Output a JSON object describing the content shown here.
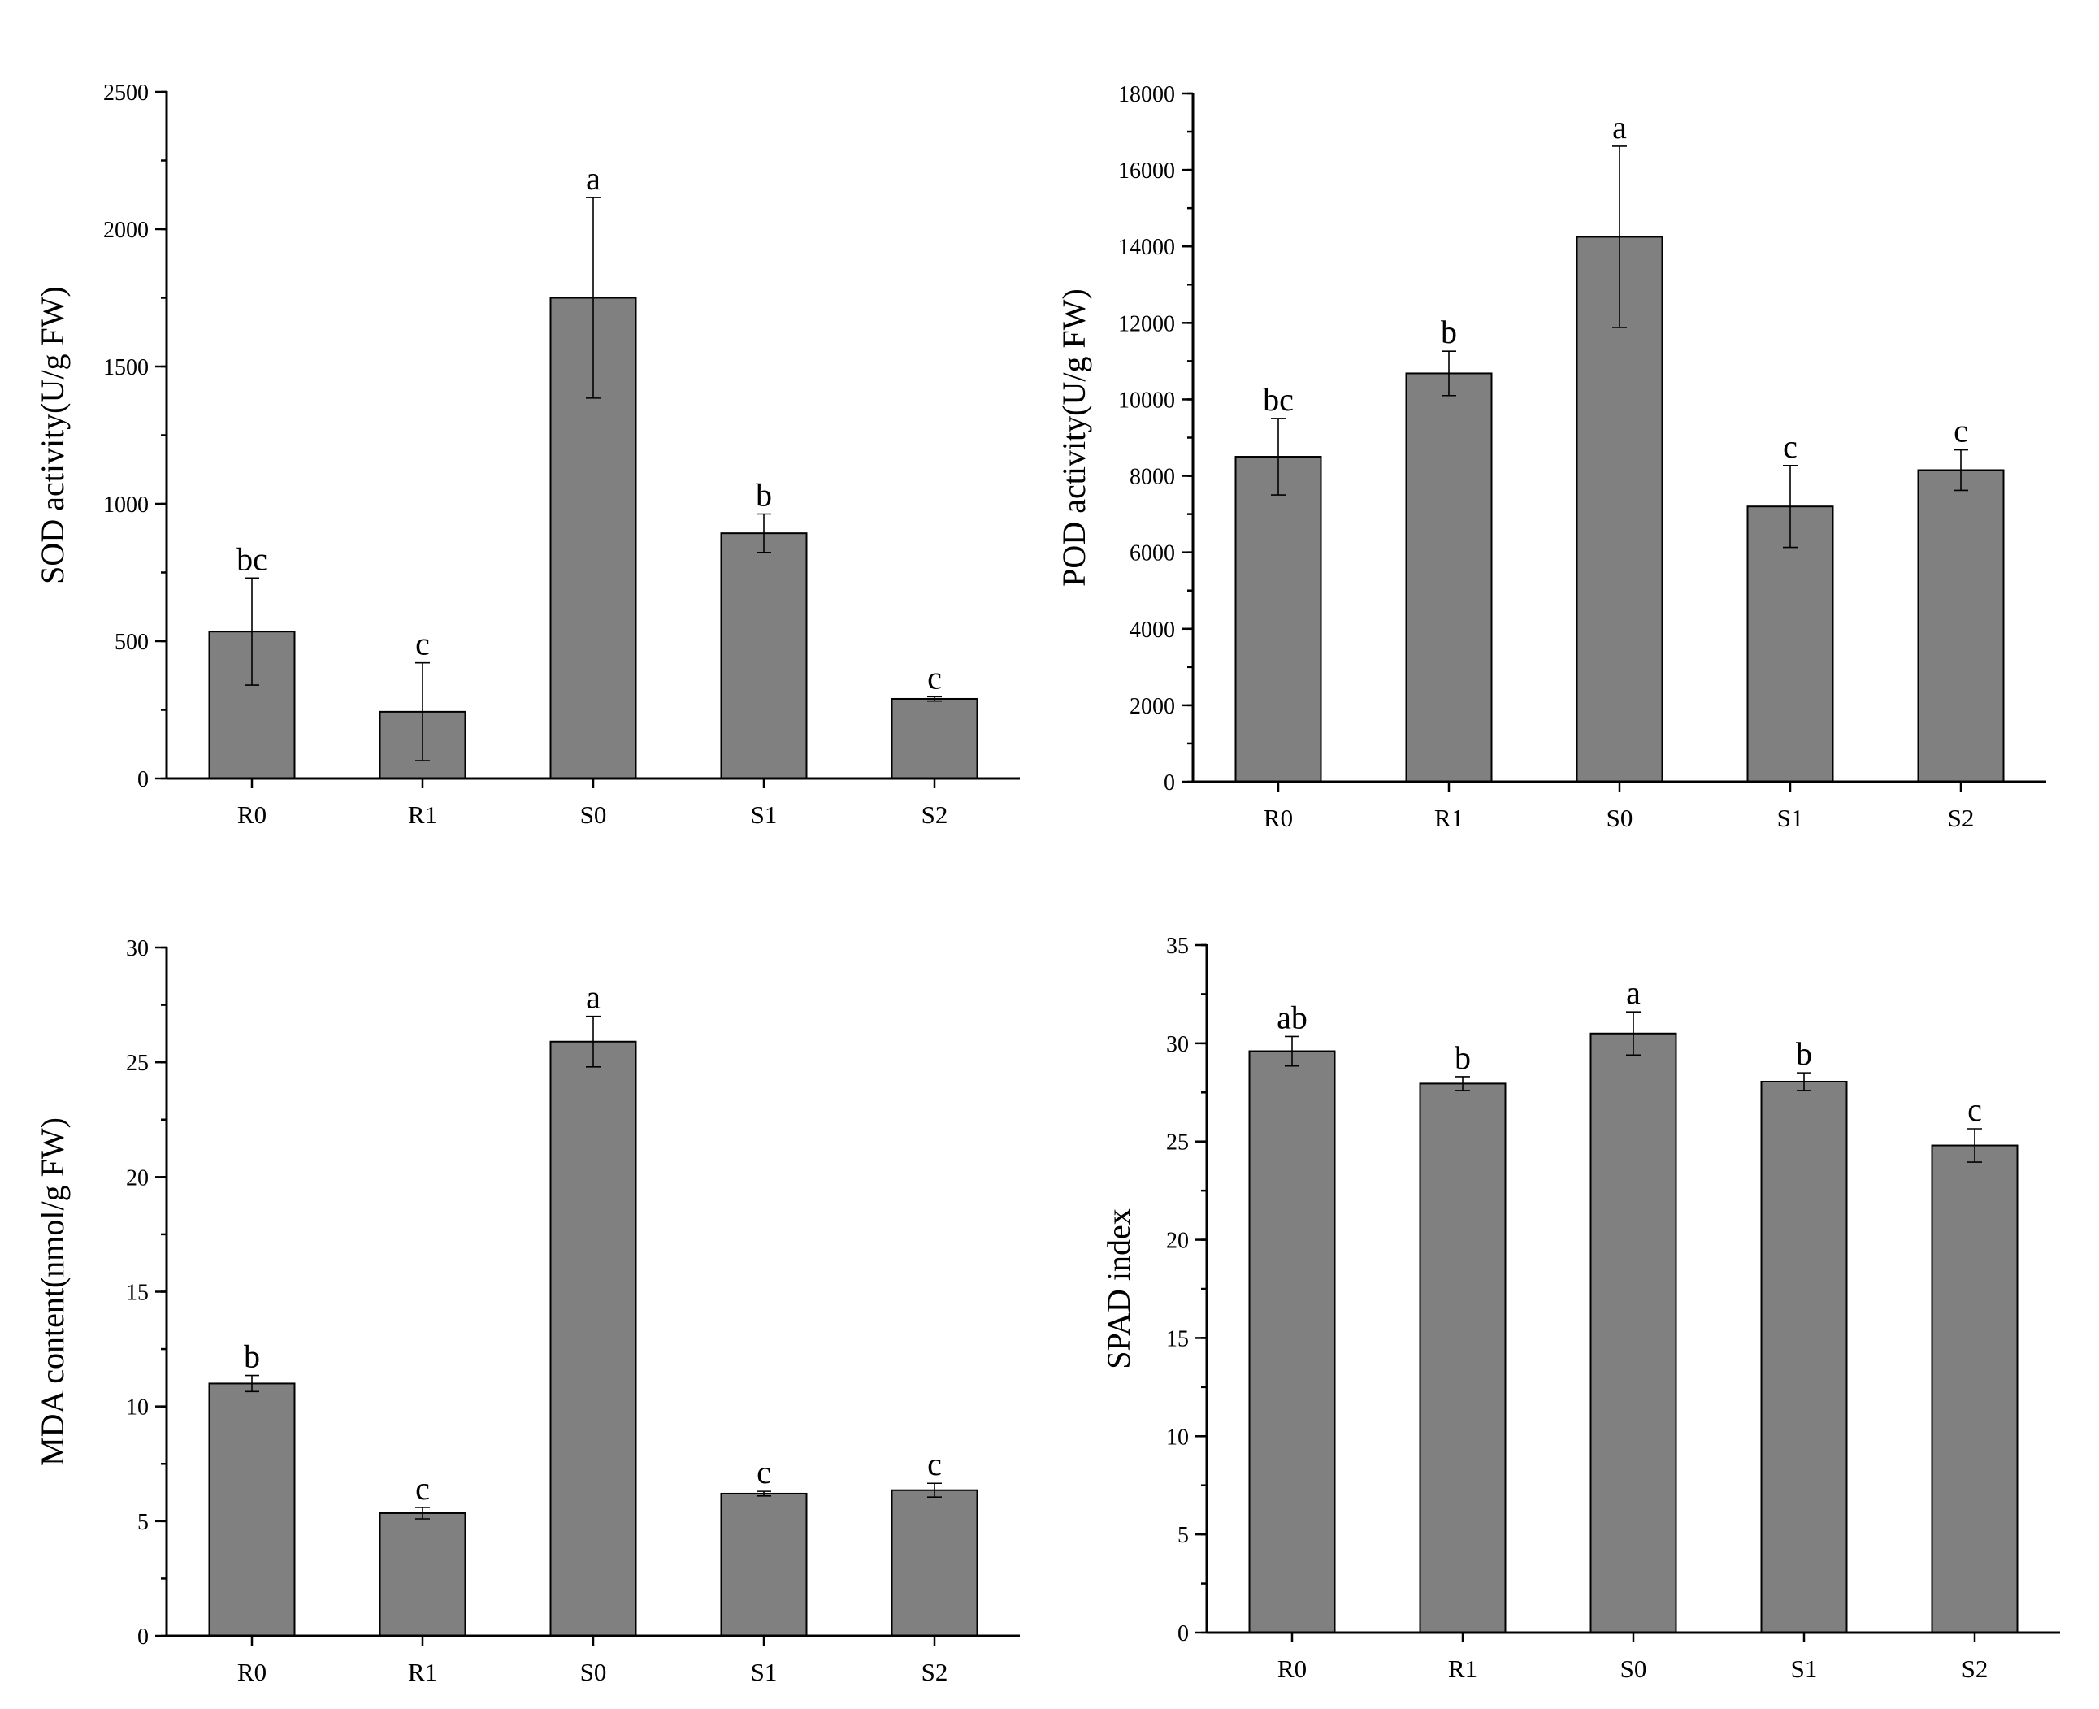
{
  "chart_data": [
    {
      "type": "bar",
      "ylabel": "SOD activity(U/g FW)",
      "categories": [
        "R0",
        "R1",
        "S0",
        "S1",
        "S2"
      ],
      "values": [
        535,
        243,
        1750,
        893,
        290
      ],
      "errors": [
        195,
        178,
        365,
        70,
        8
      ],
      "significance": [
        "bc",
        "c",
        "a",
        "b",
        "c"
      ],
      "ylim": [
        0,
        2500
      ],
      "yticks": [
        0,
        500,
        1000,
        1500,
        2000,
        2500
      ],
      "ytick_labels": [
        "0",
        "500",
        "1000",
        "1500",
        "2000",
        "2500"
      ],
      "minor_step": 250
    },
    {
      "type": "bar",
      "ylabel": "POD activity(U/g FW)",
      "categories": [
        "R0",
        "R1",
        "S0",
        "S1",
        "S2"
      ],
      "values": [
        8500,
        10680,
        14250,
        7200,
        8150
      ],
      "errors": [
        1000,
        580,
        2370,
        1070,
        530
      ],
      "significance": [
        "bc",
        "b",
        "a",
        "c",
        "c"
      ],
      "ylim": [
        0,
        18000
      ],
      "yticks": [
        0,
        2000,
        4000,
        6000,
        8000,
        10000,
        12000,
        14000,
        16000,
        18000
      ],
      "ytick_labels": [
        "0",
        "2000",
        "4000",
        "6000",
        "8000",
        "10000",
        "12000",
        "14000",
        "16000",
        "18000"
      ],
      "minor_step": 1000
    },
    {
      "type": "bar",
      "ylabel": "MDA content(nmol/g FW)",
      "categories": [
        "R0",
        "R1",
        "S0",
        "S1",
        "S2"
      ],
      "values": [
        11.0,
        5.35,
        25.9,
        6.2,
        6.35
      ],
      "errors": [
        0.35,
        0.25,
        1.1,
        0.1,
        0.3
      ],
      "significance": [
        "b",
        "c",
        "a",
        "c",
        "c"
      ],
      "ylim": [
        0,
        30
      ],
      "yticks": [
        0,
        5,
        10,
        15,
        20,
        25,
        30
      ],
      "ytick_labels": [
        "0",
        "5",
        "10",
        "15",
        "20",
        "25",
        "30"
      ],
      "minor_step": 2.5
    },
    {
      "type": "bar",
      "ylabel": "SPAD index",
      "categories": [
        "R0",
        "R1",
        "S0",
        "S1",
        "S2"
      ],
      "values": [
        29.6,
        27.95,
        30.5,
        28.05,
        24.8
      ],
      "errors": [
        0.75,
        0.35,
        1.1,
        0.45,
        0.85
      ],
      "significance": [
        "ab",
        "b",
        "a",
        "b",
        "c"
      ],
      "ylim": [
        0,
        35
      ],
      "yticks": [
        0,
        5,
        10,
        15,
        20,
        25,
        30,
        35
      ],
      "ytick_labels": [
        "0",
        "5",
        "10",
        "15",
        "20",
        "25",
        "30",
        "35"
      ],
      "minor_step": 2.5
    }
  ]
}
